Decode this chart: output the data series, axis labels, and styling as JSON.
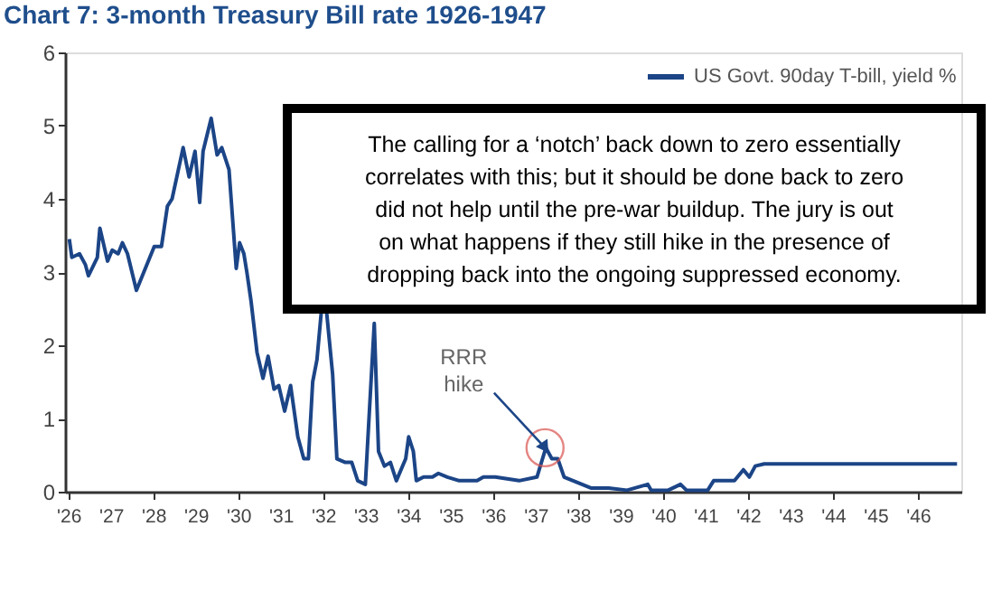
{
  "chart_data": {
    "type": "line",
    "title": "Chart 7: 3-month Treasury Bill rate 1926-1947",
    "xlim": [
      1925.9,
      1947
    ],
    "ylim": [
      0,
      6
    ],
    "yticks": [
      0,
      1,
      2,
      3,
      4,
      5,
      6
    ],
    "xticks": [
      {
        "value": 1926,
        "label": "'26"
      },
      {
        "value": 1927,
        "label": "'27"
      },
      {
        "value": 1928,
        "label": "'28"
      },
      {
        "value": 1929,
        "label": "'29"
      },
      {
        "value": 1930,
        "label": "'30"
      },
      {
        "value": 1931,
        "label": "'31"
      },
      {
        "value": 1932,
        "label": "'32"
      },
      {
        "value": 1933,
        "label": "'33"
      },
      {
        "value": 1934,
        "label": "'34"
      },
      {
        "value": 1935,
        "label": "'35"
      },
      {
        "value": 1936,
        "label": "'36"
      },
      {
        "value": 1937,
        "label": "'37"
      },
      {
        "value": 1938,
        "label": "'38"
      },
      {
        "value": 1939,
        "label": "'39"
      },
      {
        "value": 1940,
        "label": "'40"
      },
      {
        "value": 1941,
        "label": "'41"
      },
      {
        "value": 1942,
        "label": "'42"
      },
      {
        "value": 1943,
        "label": "'43"
      },
      {
        "value": 1944,
        "label": "'44"
      },
      {
        "value": 1945,
        "label": "'45"
      },
      {
        "value": 1946,
        "label": "'46"
      }
    ],
    "grid": false,
    "legend": "top right",
    "series": [
      {
        "name": "US Govt. 90day T-bill, yield %",
        "color": "#1c4587",
        "x": [
          1926.0,
          1926.06,
          1926.24,
          1926.38,
          1926.45,
          1926.66,
          1926.72,
          1926.9,
          1927.01,
          1927.15,
          1927.25,
          1927.37,
          1927.58,
          1927.79,
          1928.0,
          1928.17,
          1928.31,
          1928.42,
          1928.68,
          1928.82,
          1928.96,
          1929.07,
          1929.15,
          1929.34,
          1929.48,
          1929.59,
          1929.76,
          1929.93,
          1930.01,
          1930.11,
          1930.18,
          1930.28,
          1930.42,
          1930.56,
          1930.68,
          1930.82,
          1930.93,
          1931.07,
          1931.21,
          1931.38,
          1931.52,
          1931.63,
          1931.73,
          1931.83,
          1931.94,
          1932.05,
          1932.2,
          1932.3,
          1932.5,
          1932.65,
          1932.79,
          1932.97,
          1933.18,
          1933.28,
          1933.42,
          1933.56,
          1933.7,
          1933.92,
          1933.99,
          1934.1,
          1934.17,
          1934.34,
          1934.55,
          1934.69,
          1934.9,
          1935.18,
          1935.6,
          1935.75,
          1936.03,
          1936.59,
          1937.01,
          1937.22,
          1937.36,
          1937.5,
          1937.65,
          1937.86,
          1938.28,
          1938.7,
          1939.13,
          1939.62,
          1939.7,
          1940.1,
          1940.39,
          1940.53,
          1941.03,
          1941.17,
          1941.66,
          1941.87,
          1942.01,
          1942.15,
          1942.36,
          1946.9
        ],
        "values": [
          3.45,
          3.2,
          3.25,
          3.1,
          2.95,
          3.2,
          3.6,
          3.15,
          3.3,
          3.25,
          3.4,
          3.25,
          2.75,
          3.05,
          3.35,
          3.35,
          3.9,
          4.0,
          4.7,
          4.3,
          4.65,
          3.95,
          4.65,
          5.1,
          4.6,
          4.7,
          4.4,
          3.05,
          3.4,
          3.25,
          3.0,
          2.6,
          1.9,
          1.55,
          1.85,
          1.4,
          1.45,
          1.1,
          1.45,
          0.75,
          0.45,
          0.45,
          1.5,
          1.8,
          2.5,
          2.5,
          1.6,
          0.45,
          0.4,
          0.4,
          0.15,
          0.1,
          2.3,
          0.55,
          0.35,
          0.4,
          0.15,
          0.45,
          0.75,
          0.55,
          0.15,
          0.2,
          0.2,
          0.25,
          0.2,
          0.15,
          0.15,
          0.2,
          0.2,
          0.15,
          0.2,
          0.6,
          0.45,
          0.45,
          0.2,
          0.15,
          0.05,
          0.05,
          0.02,
          0.1,
          0.02,
          0.02,
          0.1,
          0.02,
          0.02,
          0.15,
          0.15,
          0.3,
          0.2,
          0.35,
          0.38,
          0.38
        ]
      }
    ],
    "annotations": [
      "The calling for a ‘notch’ back down to zero essentially correlates with this; but it should be done back to zero did not help until the pre-war buildup. The jury is out on what happens if they still hike in the presence of dropping back into the ongoing suppressed economy.",
      {
        "text": "RRR hike",
        "x": 1937.2,
        "y": 0.6
      }
    ]
  }
}
